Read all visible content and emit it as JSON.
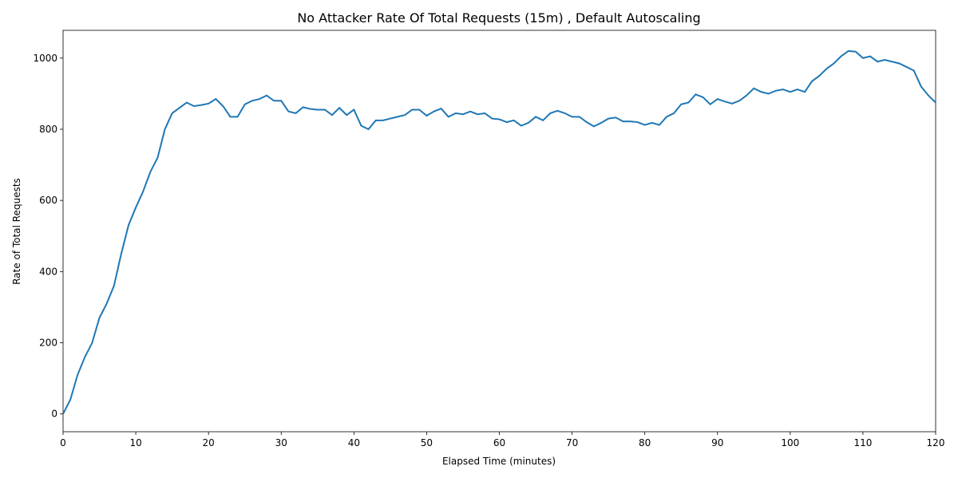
{
  "chart_data": {
    "type": "line",
    "title": "No Attacker Rate Of Total Requests (15m) , Default Autoscaling",
    "x_label": "Elapsed Time (minutes)",
    "y_label": "Rate of Total Requests",
    "x": [
      0,
      1,
      2,
      3,
      4,
      5,
      6,
      7,
      8,
      9,
      10,
      11,
      12,
      13,
      14,
      15,
      16,
      17,
      18,
      19,
      20,
      21,
      22,
      23,
      24,
      25,
      26,
      27,
      28,
      29,
      30,
      31,
      32,
      33,
      34,
      35,
      36,
      37,
      38,
      39,
      40,
      41,
      42,
      43,
      44,
      45,
      46,
      47,
      48,
      49,
      50,
      51,
      52,
      53,
      54,
      55,
      56,
      57,
      58,
      59,
      60,
      61,
      62,
      63,
      64,
      65,
      66,
      67,
      68,
      69,
      70,
      71,
      72,
      73,
      74,
      75,
      76,
      77,
      78,
      79,
      80,
      81,
      82,
      83,
      84,
      85,
      86,
      87,
      88,
      89,
      90,
      91,
      92,
      93,
      94,
      95,
      96,
      97,
      98,
      99,
      100,
      101,
      102,
      103,
      104,
      105,
      106,
      107,
      108,
      109,
      110,
      111,
      112,
      113,
      114,
      115,
      116,
      117,
      118,
      119,
      120
    ],
    "series": [
      {
        "name": "Rate of Total Requests",
        "color": "#1f77b4",
        "values": [
          0,
          40,
          110,
          160,
          200,
          270,
          310,
          360,
          450,
          530,
          580,
          625,
          680,
          720,
          800,
          845,
          860,
          875,
          865,
          868,
          872,
          885,
          865,
          835,
          835,
          870,
          880,
          885,
          895,
          880,
          880,
          850,
          845,
          862,
          857,
          855,
          855,
          840,
          860,
          840,
          855,
          810,
          800,
          825,
          825,
          830,
          835,
          840,
          855,
          855,
          838,
          850,
          858,
          835,
          845,
          842,
          850,
          842,
          845,
          830,
          828,
          820,
          825,
          810,
          818,
          835,
          825,
          845,
          852,
          845,
          835,
          835,
          820,
          808,
          818,
          830,
          833,
          822,
          822,
          820,
          812,
          818,
          812,
          835,
          845,
          870,
          875,
          898,
          890,
          870,
          885,
          878,
          872,
          880,
          895,
          915,
          905,
          900,
          908,
          912,
          905,
          912,
          905,
          935,
          950,
          970,
          985,
          1005,
          1020,
          1018,
          1000,
          1005,
          990,
          995,
          990,
          985,
          975,
          965,
          920,
          895,
          875
        ]
      }
    ],
    "xlim": [
      0,
      120
    ],
    "xticks": [
      0,
      10,
      20,
      30,
      40,
      50,
      60,
      70,
      80,
      90,
      100,
      110,
      120
    ],
    "ylim": [
      -50,
      1078
    ],
    "yticks": [
      0,
      200,
      400,
      600,
      800,
      1000
    ]
  }
}
